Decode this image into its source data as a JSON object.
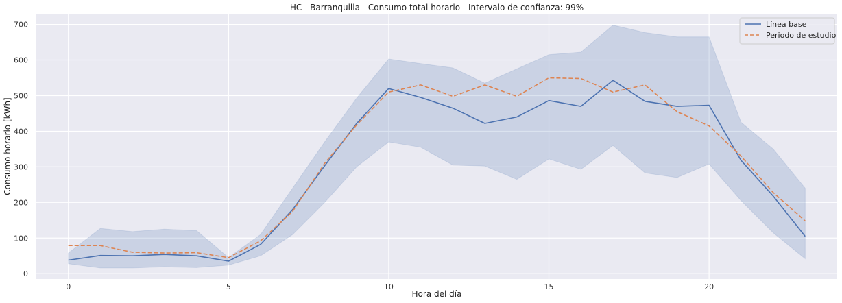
{
  "chart_data": {
    "type": "line",
    "title": "HC - Barranquilla - Consumo total horario - Intervalo de confianza: 99%",
    "xlabel": "Hora del día",
    "ylabel": "Consumo horario [kWh]",
    "x": [
      0,
      1,
      2,
      3,
      4,
      5,
      6,
      7,
      8,
      9,
      10,
      11,
      12,
      13,
      14,
      15,
      16,
      17,
      18,
      19,
      20,
      21,
      22,
      23
    ],
    "xlim": [
      -1,
      24
    ],
    "ylim": [
      -15,
      730
    ],
    "xticks": [
      0,
      5,
      10,
      15,
      20
    ],
    "yticks": [
      0,
      100,
      200,
      300,
      400,
      500,
      600,
      700
    ],
    "grid": true,
    "legend_position": "top-right",
    "series": [
      {
        "name": "Línea base",
        "color": "#4c72b0",
        "style": "solid",
        "values": [
          38,
          51,
          50,
          54,
          50,
          35,
          82,
          180,
          303,
          422,
          520,
          495,
          465,
          422,
          440,
          486,
          470,
          543,
          484,
          470,
          473,
          318,
          218,
          105
        ]
      },
      {
        "name": "Periodo de estudio",
        "color": "#dd8452",
        "style": "dashed",
        "values": [
          79,
          79,
          60,
          58,
          59,
          45,
          92,
          175,
          310,
          418,
          510,
          530,
          498,
          530,
          498,
          550,
          548,
          510,
          530,
          455,
          415,
          330,
          228,
          148
        ]
      }
    ],
    "confidence_band": {
      "series": "Línea base",
      "color": "#4c72b0",
      "lower": [
        28,
        16,
        16,
        19,
        17,
        24,
        50,
        110,
        200,
        300,
        370,
        355,
        305,
        302,
        265,
        322,
        293,
        360,
        283,
        270,
        308,
        205,
        115,
        42
      ],
      "upper": [
        58,
        127,
        118,
        125,
        121,
        45,
        110,
        240,
        370,
        493,
        603,
        590,
        578,
        535,
        575,
        615,
        622,
        698,
        677,
        665,
        665,
        425,
        350,
        240
      ]
    }
  }
}
